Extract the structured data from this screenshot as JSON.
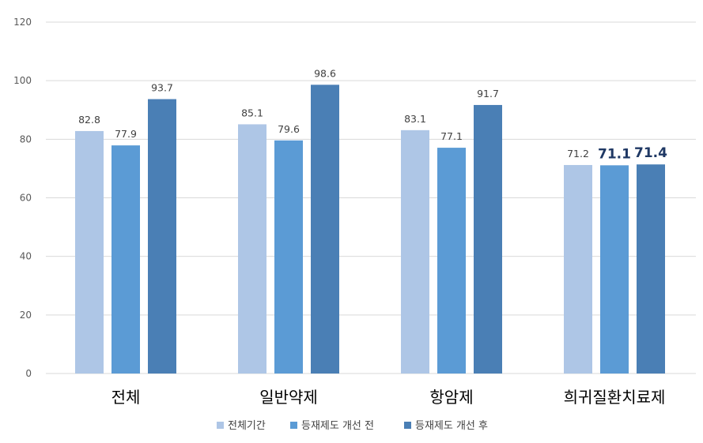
{
  "chart_data": {
    "type": "bar",
    "title": "",
    "xlabel": "",
    "ylabel": "",
    "ylim": [
      0,
      120
    ],
    "yticks": [
      0,
      20,
      40,
      60,
      80,
      100,
      120
    ],
    "grid": true,
    "legend_position": "bottom",
    "categories": [
      "전체",
      "일반약제",
      "항암제",
      "희귀질환치료제"
    ],
    "series": [
      {
        "name": "전체기간",
        "color": "#aec6e6",
        "values": [
          82.8,
          85.1,
          83.1,
          71.2
        ]
      },
      {
        "name": "등재제도 개선 전",
        "color": "#5b9bd5",
        "values": [
          77.9,
          79.6,
          77.1,
          71.1
        ]
      },
      {
        "name": "등재제도 개선 후",
        "color": "#4a7fb5",
        "values": [
          93.7,
          98.6,
          91.7,
          71.4
        ]
      }
    ],
    "emphasized_labels": [
      [
        3,
        1
      ],
      [
        3,
        2
      ]
    ]
  }
}
